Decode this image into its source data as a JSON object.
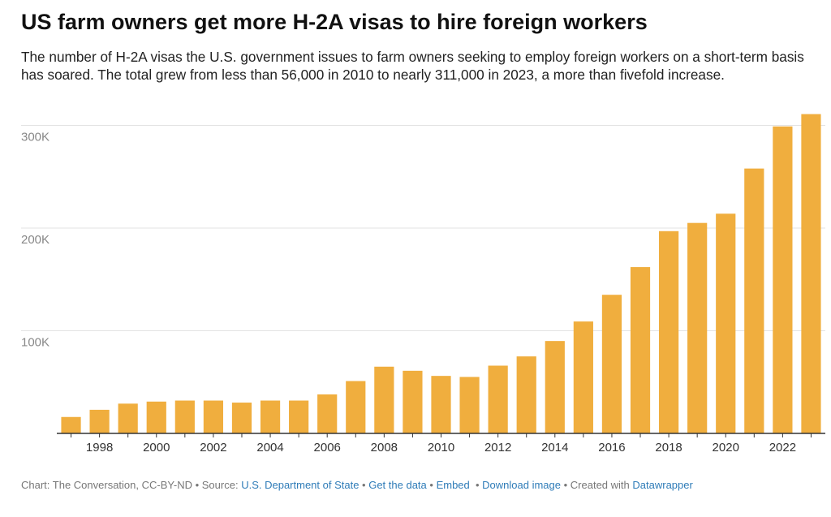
{
  "title": "US farm owners get more H-2A visas to hire foreign workers",
  "subtitle": "The number of H-2A visas the U.S. government issues to farm owners seeking to employ foreign workers on a short-term basis has soared. The total grew from less than 56,000 in 2010 to nearly 311,000 in 2023, a more than fivefold increase.",
  "colors": {
    "bar": "#f0ae3e",
    "grid": "#e3e3e3",
    "axis": "#333333",
    "tick_text": "#888888",
    "link": "#2f7cb8"
  },
  "chart_data": {
    "type": "bar",
    "title": "US farm owners get more H-2A visas to hire foreign workers",
    "categories": [
      1997,
      1998,
      1999,
      2000,
      2001,
      2002,
      2003,
      2004,
      2005,
      2006,
      2007,
      2008,
      2009,
      2010,
      2011,
      2012,
      2013,
      2014,
      2015,
      2016,
      2017,
      2018,
      2019,
      2020,
      2021,
      2022,
      2023
    ],
    "values": [
      16000,
      23000,
      29000,
      31000,
      32000,
      32000,
      30000,
      32000,
      32000,
      38000,
      51000,
      65000,
      61000,
      56000,
      55000,
      66000,
      75000,
      90000,
      109000,
      135000,
      162000,
      197000,
      205000,
      214000,
      258000,
      299000,
      311000
    ],
    "x_tick_labels": [
      "1998",
      "2000",
      "2002",
      "2004",
      "2006",
      "2008",
      "2010",
      "2012",
      "2014",
      "2016",
      "2018",
      "2020",
      "2022"
    ],
    "y_ticks": [
      100000,
      200000,
      300000
    ],
    "y_tick_labels": [
      "100K",
      "200K",
      "300K"
    ],
    "ylim": [
      0,
      320000
    ],
    "xlabel": "",
    "ylabel": "",
    "grid": true,
    "legend": "none"
  },
  "footer": {
    "credit": "Chart: The Conversation, CC-BY-ND",
    "source_label": "Source:",
    "source_link": "U.S. Department of State",
    "get_data": "Get the data",
    "embed": "Embed",
    "download": "Download image",
    "created_with": "Created with",
    "datawrapper": "Datawrapper"
  }
}
